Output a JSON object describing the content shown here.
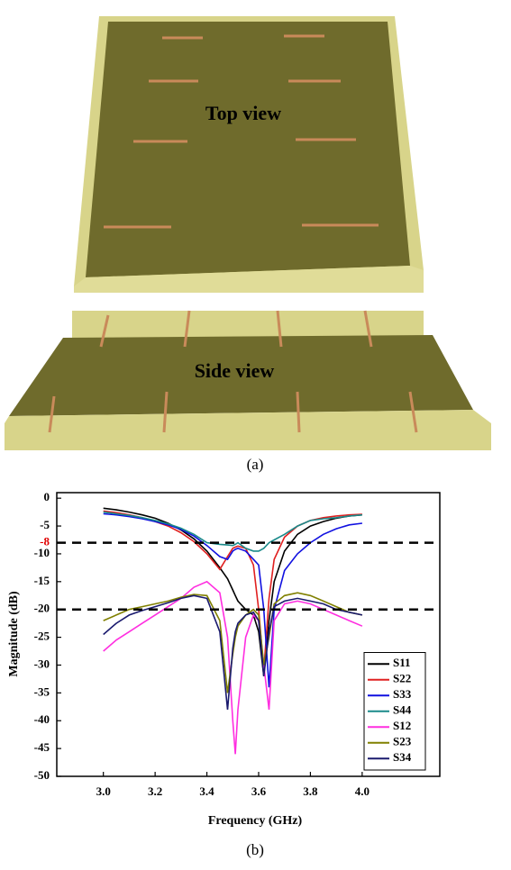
{
  "figure": {
    "top_view_label": "Top view",
    "side_view_label": "Side view",
    "panel_a_label": "(a)",
    "panel_b_label": "(b)"
  },
  "chart_data": {
    "type": "line",
    "xlabel": "Frequency (GHz)",
    "ylabel": "Magnitude (dB)",
    "x": [
      3.0,
      3.05,
      3.1,
      3.15,
      3.2,
      3.25,
      3.3,
      3.35,
      3.4,
      3.45,
      3.48,
      3.5,
      3.51,
      3.52,
      3.55,
      3.58,
      3.6,
      3.62,
      3.64,
      3.66,
      3.7,
      3.75,
      3.8,
      3.85,
      3.9,
      3.95,
      4.0
    ],
    "series": [
      {
        "name": "S11",
        "color": "#000000",
        "values": [
          -1.8,
          -2.1,
          -2.5,
          -3,
          -3.6,
          -4.5,
          -5.7,
          -7.3,
          -9.5,
          -12.5,
          -14.5,
          -16.5,
          -17.5,
          -18.5,
          -20,
          -21,
          -24,
          -32,
          -22,
          -15,
          -9.5,
          -6.5,
          -5,
          -4.2,
          -3.6,
          -3.2,
          -3
        ]
      },
      {
        "name": "S22",
        "color": "#e02020",
        "values": [
          -2.3,
          -2.6,
          -3,
          -3.5,
          -4.2,
          -5,
          -6.2,
          -7.8,
          -10,
          -12.8,
          -10.5,
          -9,
          -8.8,
          -8.6,
          -9,
          -12,
          -20,
          -31,
          -18,
          -11,
          -7,
          -5,
          -4,
          -3.5,
          -3.2,
          -3,
          -2.9
        ]
      },
      {
        "name": "S33",
        "color": "#1010e0",
        "values": [
          -2.8,
          -3,
          -3.3,
          -3.7,
          -4.2,
          -4.8,
          -5.6,
          -6.8,
          -8.5,
          -10.5,
          -11,
          -9.5,
          -9.2,
          -9,
          -9.5,
          -11,
          -12,
          -20,
          -34,
          -20,
          -13,
          -10,
          -8,
          -6.5,
          -5.5,
          -4.8,
          -4.5
        ]
      },
      {
        "name": "S44",
        "color": "#1a8a8a",
        "values": [
          -2.5,
          -2.8,
          -3.1,
          -3.5,
          -4,
          -4.6,
          -5.4,
          -6.5,
          -8,
          -8.3,
          -8.4,
          -8.5,
          -8.3,
          -8,
          -9,
          -9.5,
          -9.5,
          -9,
          -8,
          -7.5,
          -6.5,
          -5,
          -4,
          -3.7,
          -3.5,
          -3.2,
          -3
        ]
      },
      {
        "name": "S12",
        "color": "#ff2ee0",
        "values": [
          -27.5,
          -25.5,
          -24,
          -22.5,
          -21,
          -19.5,
          -18,
          -16,
          -15,
          -17,
          -25,
          -40,
          -46,
          -38,
          -25,
          -21,
          -22,
          -30,
          -38,
          -22,
          -19,
          -18.5,
          -19,
          -20,
          -21,
          -22,
          -23
        ]
      },
      {
        "name": "S23",
        "color": "#808000",
        "values": [
          -22,
          -21,
          -20,
          -19.5,
          -19,
          -18.5,
          -17.8,
          -17.3,
          -17.5,
          -22,
          -35,
          -28,
          -25,
          -23,
          -21,
          -20,
          -21,
          -30,
          -25,
          -19,
          -17.5,
          -17,
          -17.5,
          -18.5,
          -19.5,
          -20.5,
          -21
        ]
      },
      {
        "name": "S34",
        "color": "#1a1a6e",
        "values": [
          -24.5,
          -22.5,
          -21,
          -20.2,
          -19.5,
          -18.8,
          -18,
          -17.5,
          -18,
          -24,
          -38,
          -27,
          -24,
          -22.5,
          -21,
          -20.5,
          -22,
          -32,
          -24,
          -19.5,
          -18.5,
          -18,
          -18.5,
          -19,
          -20,
          -20.5,
          -21
        ]
      }
    ],
    "xlim": [
      2.82,
      4.3
    ],
    "xticks": [
      {
        "value": 3.0,
        "label": "3.0"
      },
      3.2,
      3.4,
      3.6,
      3.8,
      {
        "value": 4.0,
        "label": "4.0"
      }
    ],
    "ylim": [
      -50,
      1
    ],
    "yticks": [
      0,
      -5,
      -10,
      -15,
      -20,
      -25,
      -30,
      -35,
      -40,
      -45,
      -50
    ],
    "reference_lines": [
      {
        "value": -8,
        "label_color": "#e00000"
      },
      {
        "value": -20
      }
    ],
    "legend": "lower right"
  }
}
